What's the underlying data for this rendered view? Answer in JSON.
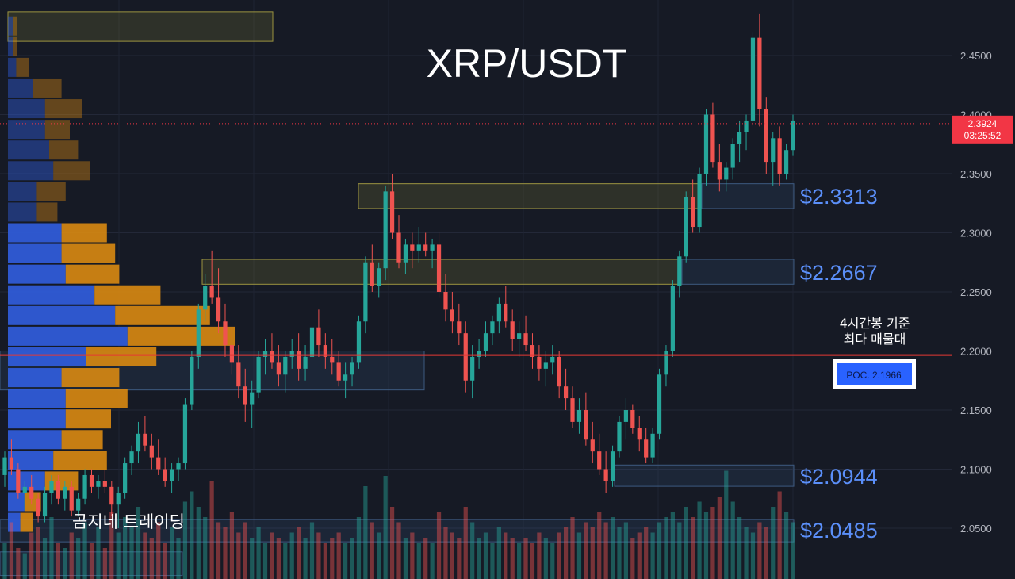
{
  "title": "XRP/USDT",
  "watermark": "곰지네 트레이딩",
  "annotation": {
    "line1": "4시간봉 기준",
    "line2": "최다 매물대"
  },
  "poc_label": "POC. 2.1966",
  "poc_value": 2.1966,
  "current_price": {
    "value": 2.3924,
    "label": "2.3924",
    "countdown": "03:25:52"
  },
  "levels": [
    {
      "value": 2.3313,
      "label": "$2.3313"
    },
    {
      "value": 2.2667,
      "label": "$2.2667"
    },
    {
      "value": 2.0944,
      "label": "$2.0944"
    },
    {
      "value": 2.0485,
      "label": "$2.0485"
    }
  ],
  "colors": {
    "background": "#161a25",
    "up": "#26a69a",
    "down": "#ef5350",
    "poc_line": "#e53935",
    "level_text": "#5b8ff9",
    "vp_buy": "#2f5bd6",
    "vp_sell": "#d98a12"
  },
  "chart_data": {
    "type": "candlestick",
    "title": "XRP/USDT",
    "ylim": [
      2.03,
      2.49
    ],
    "y_ticks": [
      "2.0500",
      "2.1000",
      "2.1500",
      "2.2000",
      "2.2500",
      "2.3000",
      "2.3500",
      "2.4000",
      "2.4500"
    ],
    "y_tick_values": [
      2.05,
      2.1,
      2.15,
      2.2,
      2.25,
      2.3,
      2.35,
      2.4,
      2.45
    ],
    "ohlc": [
      [
        2.095,
        2.115,
        2.085,
        2.11
      ],
      [
        2.11,
        2.125,
        2.095,
        2.1
      ],
      [
        2.1,
        2.105,
        2.075,
        2.08
      ],
      [
        2.08,
        2.09,
        2.065,
        2.085
      ],
      [
        2.085,
        2.095,
        2.07,
        2.075
      ],
      [
        2.075,
        2.08,
        2.055,
        2.06
      ],
      [
        2.06,
        2.085,
        2.055,
        2.08
      ],
      [
        2.08,
        2.095,
        2.07,
        2.09
      ],
      [
        2.09,
        2.095,
        2.07,
        2.075
      ],
      [
        2.075,
        2.09,
        2.065,
        2.085
      ],
      [
        2.085,
        2.09,
        2.06,
        2.065
      ],
      [
        2.065,
        2.08,
        2.06,
        2.075
      ],
      [
        2.075,
        2.1,
        2.07,
        2.095
      ],
      [
        2.095,
        2.1,
        2.08,
        2.085
      ],
      [
        2.085,
        2.095,
        2.075,
        2.09
      ],
      [
        2.09,
        2.1,
        2.08,
        2.085
      ],
      [
        2.085,
        2.09,
        2.06,
        2.07
      ],
      [
        2.07,
        2.085,
        2.05,
        2.08
      ],
      [
        2.08,
        2.11,
        2.075,
        2.105
      ],
      [
        2.105,
        2.12,
        2.095,
        2.115
      ],
      [
        2.115,
        2.14,
        2.105,
        2.13
      ],
      [
        2.13,
        2.145,
        2.115,
        2.12
      ],
      [
        2.12,
        2.13,
        2.1,
        2.11
      ],
      [
        2.11,
        2.125,
        2.095,
        2.1
      ],
      [
        2.1,
        2.11,
        2.085,
        2.09
      ],
      [
        2.09,
        2.105,
        2.08,
        2.1
      ],
      [
        2.1,
        2.11,
        2.09,
        2.105
      ],
      [
        2.105,
        2.16,
        2.1,
        2.155
      ],
      [
        2.155,
        2.2,
        2.15,
        2.195
      ],
      [
        2.195,
        2.24,
        2.185,
        2.235
      ],
      [
        2.235,
        2.265,
        2.225,
        2.255
      ],
      [
        2.255,
        2.285,
        2.24,
        2.245
      ],
      [
        2.245,
        2.27,
        2.215,
        2.225
      ],
      [
        2.225,
        2.24,
        2.195,
        2.205
      ],
      [
        2.205,
        2.22,
        2.18,
        2.19
      ],
      [
        2.19,
        2.205,
        2.16,
        2.17
      ],
      [
        2.17,
        2.185,
        2.14,
        2.155
      ],
      [
        2.155,
        2.175,
        2.135,
        2.165
      ],
      [
        2.165,
        2.2,
        2.16,
        2.195
      ],
      [
        2.195,
        2.21,
        2.18,
        2.2
      ],
      [
        2.2,
        2.215,
        2.185,
        2.19
      ],
      [
        2.19,
        2.205,
        2.17,
        2.18
      ],
      [
        2.18,
        2.2,
        2.165,
        2.195
      ],
      [
        2.195,
        2.21,
        2.185,
        2.2
      ],
      [
        2.2,
        2.215,
        2.175,
        2.185
      ],
      [
        2.185,
        2.205,
        2.175,
        2.195
      ],
      [
        2.195,
        2.225,
        2.19,
        2.22
      ],
      [
        2.22,
        2.235,
        2.195,
        2.205
      ],
      [
        2.205,
        2.215,
        2.185,
        2.195
      ],
      [
        2.195,
        2.21,
        2.18,
        2.19
      ],
      [
        2.19,
        2.2,
        2.17,
        2.175
      ],
      [
        2.175,
        2.19,
        2.16,
        2.18
      ],
      [
        2.18,
        2.195,
        2.17,
        2.19
      ],
      [
        2.19,
        2.23,
        2.185,
        2.225
      ],
      [
        2.225,
        2.28,
        2.215,
        2.275
      ],
      [
        2.275,
        2.29,
        2.25,
        2.255
      ],
      [
        2.255,
        2.275,
        2.245,
        2.27
      ],
      [
        2.27,
        2.34,
        2.26,
        2.335
      ],
      [
        2.335,
        2.35,
        2.295,
        2.3
      ],
      [
        2.3,
        2.315,
        2.27,
        2.275
      ],
      [
        2.275,
        2.295,
        2.265,
        2.29
      ],
      [
        2.29,
        2.3,
        2.27,
        2.285
      ],
      [
        2.285,
        2.305,
        2.275,
        2.29
      ],
      [
        2.29,
        2.3,
        2.28,
        2.285
      ],
      [
        2.285,
        2.295,
        2.27,
        2.29
      ],
      [
        2.29,
        2.3,
        2.245,
        2.25
      ],
      [
        2.25,
        2.265,
        2.225,
        2.235
      ],
      [
        2.235,
        2.25,
        2.215,
        2.225
      ],
      [
        2.225,
        2.24,
        2.205,
        2.215
      ],
      [
        2.215,
        2.225,
        2.165,
        2.175
      ],
      [
        2.175,
        2.205,
        2.16,
        2.195
      ],
      [
        2.195,
        2.21,
        2.185,
        2.2
      ],
      [
        2.2,
        2.225,
        2.195,
        2.215
      ],
      [
        2.215,
        2.23,
        2.205,
        2.225
      ],
      [
        2.225,
        2.245,
        2.215,
        2.24
      ],
      [
        2.24,
        2.255,
        2.22,
        2.225
      ],
      [
        2.225,
        2.235,
        2.2,
        2.21
      ],
      [
        2.21,
        2.225,
        2.195,
        2.215
      ],
      [
        2.215,
        2.23,
        2.2,
        2.205
      ],
      [
        2.205,
        2.215,
        2.185,
        2.195
      ],
      [
        2.195,
        2.205,
        2.175,
        2.185
      ],
      [
        2.185,
        2.2,
        2.17,
        2.19
      ],
      [
        2.19,
        2.205,
        2.18,
        2.195
      ],
      [
        2.195,
        2.2,
        2.16,
        2.17
      ],
      [
        2.17,
        2.185,
        2.15,
        2.16
      ],
      [
        2.16,
        2.17,
        2.135,
        2.14
      ],
      [
        2.14,
        2.16,
        2.13,
        2.15
      ],
      [
        2.15,
        2.165,
        2.12,
        2.125
      ],
      [
        2.125,
        2.14,
        2.105,
        2.115
      ],
      [
        2.115,
        2.13,
        2.095,
        2.1
      ],
      [
        2.1,
        2.115,
        2.08,
        2.09
      ],
      [
        2.09,
        2.12,
        2.085,
        2.115
      ],
      [
        2.115,
        2.145,
        2.11,
        2.14
      ],
      [
        2.14,
        2.16,
        2.125,
        2.15
      ],
      [
        2.15,
        2.155,
        2.13,
        2.135
      ],
      [
        2.135,
        2.145,
        2.115,
        2.125
      ],
      [
        2.125,
        2.135,
        2.105,
        2.11
      ],
      [
        2.11,
        2.135,
        2.105,
        2.13
      ],
      [
        2.13,
        2.185,
        2.125,
        2.18
      ],
      [
        2.18,
        2.205,
        2.17,
        2.2
      ],
      [
        2.2,
        2.26,
        2.195,
        2.255
      ],
      [
        2.255,
        2.285,
        2.245,
        2.28
      ],
      [
        2.28,
        2.335,
        2.275,
        2.33
      ],
      [
        2.33,
        2.345,
        2.3,
        2.305
      ],
      [
        2.305,
        2.355,
        2.3,
        2.35
      ],
      [
        2.35,
        2.405,
        2.34,
        2.4
      ],
      [
        2.4,
        2.41,
        2.355,
        2.36
      ],
      [
        2.36,
        2.375,
        2.335,
        2.345
      ],
      [
        2.345,
        2.36,
        2.335,
        2.355
      ],
      [
        2.355,
        2.38,
        2.345,
        2.375
      ],
      [
        2.375,
        2.395,
        2.36,
        2.385
      ],
      [
        2.385,
        2.4,
        2.37,
        2.395
      ],
      [
        2.395,
        2.47,
        2.39,
        2.465
      ],
      [
        2.465,
        2.485,
        2.39,
        2.405
      ],
      [
        2.405,
        2.415,
        2.35,
        2.36
      ],
      [
        2.36,
        2.385,
        2.34,
        2.38
      ],
      [
        2.38,
        2.39,
        2.34,
        2.35
      ],
      [
        2.35,
        2.375,
        2.345,
        2.37
      ],
      [
        2.37,
        2.4,
        2.365,
        2.395
      ]
    ],
    "volume": [
      0.35,
      0.55,
      0.3,
      0.25,
      0.45,
      0.5,
      0.4,
      0.6,
      0.35,
      0.3,
      0.45,
      0.4,
      0.55,
      0.35,
      0.5,
      0.3,
      0.65,
      0.45,
      0.6,
      0.5,
      0.7,
      0.45,
      0.4,
      0.55,
      0.35,
      0.5,
      0.4,
      0.75,
      0.85,
      0.7,
      0.6,
      0.95,
      0.55,
      0.5,
      0.65,
      0.45,
      0.55,
      0.4,
      0.5,
      0.35,
      0.45,
      0.4,
      0.35,
      0.45,
      0.5,
      0.4,
      0.55,
      0.45,
      0.35,
      0.4,
      0.45,
      0.35,
      0.4,
      0.6,
      0.9,
      0.55,
      0.45,
      1.0,
      0.7,
      0.55,
      0.4,
      0.45,
      0.35,
      0.4,
      0.35,
      0.65,
      0.5,
      0.45,
      0.4,
      0.7,
      0.55,
      0.4,
      0.45,
      0.35,
      0.5,
      0.45,
      0.4,
      0.35,
      0.4,
      0.35,
      0.45,
      0.4,
      0.35,
      0.45,
      0.5,
      0.6,
      0.45,
      0.55,
      0.5,
      0.65,
      0.55,
      0.6,
      0.5,
      0.55,
      0.4,
      0.45,
      0.5,
      0.45,
      0.55,
      0.6,
      0.65,
      0.55,
      0.7,
      0.6,
      0.75,
      0.65,
      0.7,
      0.8,
      1.05,
      0.75,
      0.6,
      0.5,
      0.45,
      0.55,
      0.5,
      0.7,
      0.85,
      0.65,
      0.55,
      0.5,
      0.45,
      0.4,
      0.35
    ],
    "volume_profile": [
      {
        "price": 2.475,
        "buy": 0.6,
        "sell": 0.5
      },
      {
        "price": 2.4575,
        "buy": 0.6,
        "sell": 0.5
      },
      {
        "price": 2.44,
        "buy": 1.0,
        "sell": 1.5
      },
      {
        "price": 2.4225,
        "buy": 3.0,
        "sell": 3.5
      },
      {
        "price": 2.405,
        "buy": 4.5,
        "sell": 4.5
      },
      {
        "price": 2.3875,
        "buy": 4.5,
        "sell": 3.0
      },
      {
        "price": 2.37,
        "buy": 5.0,
        "sell": 3.5
      },
      {
        "price": 2.3525,
        "buy": 5.5,
        "sell": 4.5
      },
      {
        "price": 2.335,
        "buy": 3.5,
        "sell": 3.5
      },
      {
        "price": 2.3175,
        "buy": 3.5,
        "sell": 2.5
      },
      {
        "price": 2.3,
        "buy": 6.5,
        "sell": 5.5
      },
      {
        "price": 2.2825,
        "buy": 6.5,
        "sell": 6.5
      },
      {
        "price": 2.265,
        "buy": 7.0,
        "sell": 6.5
      },
      {
        "price": 2.2475,
        "buy": 10.5,
        "sell": 8.0
      },
      {
        "price": 2.23,
        "buy": 13.0,
        "sell": 11.5
      },
      {
        "price": 2.2125,
        "buy": 14.5,
        "sell": 13.0
      },
      {
        "price": 2.195,
        "buy": 9.5,
        "sell": 8.5
      },
      {
        "price": 2.1775,
        "buy": 6.5,
        "sell": 7.0
      },
      {
        "price": 2.16,
        "buy": 7.0,
        "sell": 7.5
      },
      {
        "price": 2.1425,
        "buy": 7.0,
        "sell": 5.5
      },
      {
        "price": 2.125,
        "buy": 6.5,
        "sell": 5.0
      },
      {
        "price": 2.1075,
        "buy": 5.5,
        "sell": 6.5
      },
      {
        "price": 2.09,
        "buy": 4.5,
        "sell": 4.0
      },
      {
        "price": 2.0725,
        "buy": 2.0,
        "sell": 2.0
      },
      {
        "price": 2.055,
        "buy": 1.5,
        "sell": 1.5
      }
    ]
  }
}
